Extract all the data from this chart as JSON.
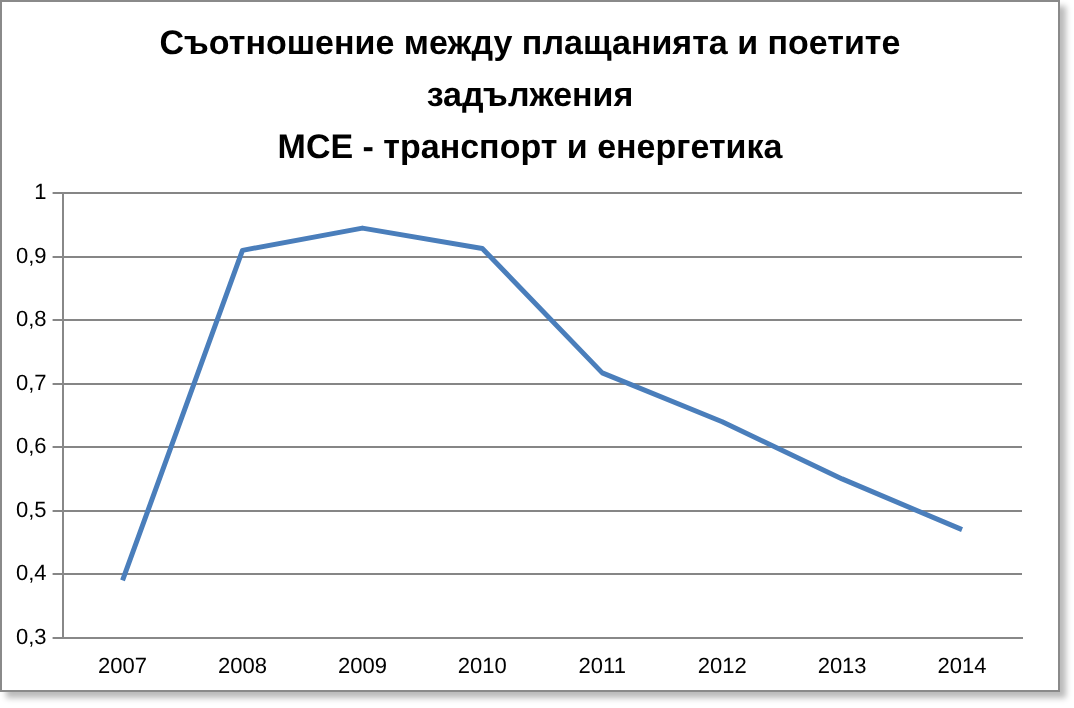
{
  "chart_data": {
    "type": "line",
    "title": "Съотношение между плащанията и поетите\nзадължения\nМСЕ - транспорт и енергетика",
    "categories": [
      "2007",
      "2008",
      "2009",
      "2010",
      "2011",
      "2012",
      "2013",
      "2014"
    ],
    "series": [
      {
        "color": "#4a7ebb",
        "values": [
          0.39,
          0.91,
          0.945,
          0.913,
          0.717,
          0.64,
          0.55,
          0.47
        ]
      }
    ],
    "ylim": [
      0.3,
      1
    ],
    "yticks": [
      {
        "value": 0.3,
        "label": "0,3"
      },
      {
        "value": 0.4,
        "label": "0,4"
      },
      {
        "value": 0.5,
        "label": "0,5"
      },
      {
        "value": 0.6,
        "label": "0,6"
      },
      {
        "value": 0.7,
        "label": "0,7"
      },
      {
        "value": 0.8,
        "label": "0,8"
      },
      {
        "value": 0.9,
        "label": "0,9"
      },
      {
        "value": 1,
        "label": "1"
      }
    ],
    "grid": "y",
    "legend": false,
    "marker": "none",
    "line_style": "solid"
  }
}
